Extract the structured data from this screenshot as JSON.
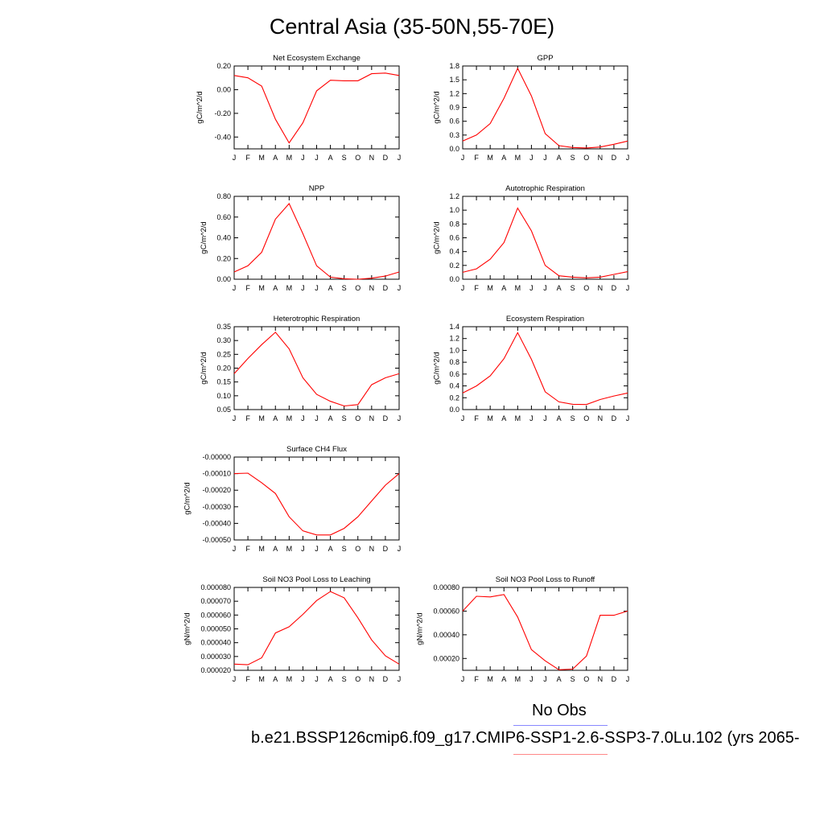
{
  "page": {
    "title": "Central Asia (35-50N,55-70E)",
    "legend_obs_label": "No Obs",
    "legend_case_label": "b.e21.BSSP126cmip6.f09_g17.CMIP6-SSP1-2.6-SSP3-7.0Lu.102 (yrs 2065-",
    "colors": {
      "series": "#ff0000",
      "obs_line": "#8888ff",
      "case_line": "#ff8888"
    }
  },
  "chart_data": [
    {
      "type": "line",
      "title": "Net Ecosystem Exchange",
      "ylabel": "gC/m^2/d",
      "x": [
        "J",
        "F",
        "M",
        "A",
        "M",
        "J",
        "J",
        "A",
        "S",
        "O",
        "N",
        "D",
        "J"
      ],
      "ylim": [
        -0.5,
        0.2
      ],
      "yticks": [
        -0.4,
        -0.2,
        0.0,
        0.2
      ],
      "yticklabels": [
        "-0.40",
        "-0.20",
        "0.00",
        "0.20"
      ],
      "series": [
        {
          "values": [
            0.12,
            0.1,
            0.03,
            -0.25,
            -0.45,
            -0.28,
            -0.01,
            0.08,
            0.075,
            0.075,
            0.135,
            0.14,
            0.12
          ]
        }
      ]
    },
    {
      "type": "line",
      "title": "GPP",
      "ylabel": "gC/m^2/d",
      "x": [
        "J",
        "F",
        "M",
        "A",
        "M",
        "J",
        "J",
        "A",
        "S",
        "O",
        "N",
        "D",
        "J"
      ],
      "ylim": [
        0.0,
        1.8
      ],
      "yticks": [
        0.0,
        0.3,
        0.6,
        0.9,
        1.2,
        1.5,
        1.8
      ],
      "yticklabels": [
        "0.0",
        "0.3",
        "0.6",
        "0.9",
        "1.2",
        "1.5",
        "1.8"
      ],
      "series": [
        {
          "values": [
            0.17,
            0.3,
            0.55,
            1.1,
            1.75,
            1.15,
            0.33,
            0.07,
            0.03,
            0.02,
            0.04,
            0.1,
            0.17
          ]
        }
      ]
    },
    {
      "type": "line",
      "title": "NPP",
      "ylabel": "gC/m^2/d",
      "x": [
        "J",
        "F",
        "M",
        "A",
        "M",
        "J",
        "J",
        "A",
        "S",
        "O",
        "N",
        "D",
        "J"
      ],
      "ylim": [
        0.0,
        0.8
      ],
      "yticks": [
        0.0,
        0.2,
        0.4,
        0.6,
        0.8
      ],
      "yticklabels": [
        "0.00",
        "0.20",
        "0.40",
        "0.60",
        "0.80"
      ],
      "series": [
        {
          "values": [
            0.07,
            0.13,
            0.26,
            0.58,
            0.73,
            0.44,
            0.13,
            0.02,
            0.005,
            0.0,
            0.01,
            0.03,
            0.07
          ]
        }
      ]
    },
    {
      "type": "line",
      "title": "Autotrophic Respiration",
      "ylabel": "gC/m^2/d",
      "x": [
        "J",
        "F",
        "M",
        "A",
        "M",
        "J",
        "J",
        "A",
        "S",
        "O",
        "N",
        "D",
        "J"
      ],
      "ylim": [
        0.0,
        1.2
      ],
      "yticks": [
        0.0,
        0.2,
        0.4,
        0.6,
        0.8,
        1.0,
        1.2
      ],
      "yticklabels": [
        "0.0",
        "0.2",
        "0.4",
        "0.6",
        "0.8",
        "1.0",
        "1.2"
      ],
      "series": [
        {
          "values": [
            0.1,
            0.15,
            0.29,
            0.53,
            1.03,
            0.7,
            0.2,
            0.05,
            0.03,
            0.02,
            0.03,
            0.07,
            0.11
          ]
        }
      ]
    },
    {
      "type": "line",
      "title": "Heterotrophic Respiration",
      "ylabel": "gC/m^2/d",
      "x": [
        "J",
        "F",
        "M",
        "A",
        "M",
        "J",
        "J",
        "A",
        "S",
        "O",
        "N",
        "D",
        "J"
      ],
      "ylim": [
        0.05,
        0.35
      ],
      "yticks": [
        0.05,
        0.1,
        0.15,
        0.2,
        0.25,
        0.3,
        0.35
      ],
      "yticklabels": [
        "0.05",
        "0.10",
        "0.15",
        "0.20",
        "0.25",
        "0.30",
        "0.35"
      ],
      "series": [
        {
          "values": [
            0.18,
            0.235,
            0.285,
            0.33,
            0.27,
            0.165,
            0.105,
            0.08,
            0.063,
            0.068,
            0.14,
            0.165,
            0.18
          ]
        }
      ]
    },
    {
      "type": "line",
      "title": "Ecosystem Respiration",
      "ylabel": "gC/m^2/d",
      "x": [
        "J",
        "F",
        "M",
        "A",
        "M",
        "J",
        "J",
        "A",
        "S",
        "O",
        "N",
        "D",
        "J"
      ],
      "ylim": [
        0.0,
        1.4
      ],
      "yticks": [
        0.0,
        0.2,
        0.4,
        0.6,
        0.8,
        1.0,
        1.2,
        1.4
      ],
      "yticklabels": [
        "0.0",
        "0.2",
        "0.4",
        "0.6",
        "0.8",
        "1.0",
        "1.2",
        "1.4"
      ],
      "series": [
        {
          "values": [
            0.28,
            0.4,
            0.57,
            0.86,
            1.3,
            0.85,
            0.3,
            0.13,
            0.09,
            0.085,
            0.17,
            0.23,
            0.28
          ]
        }
      ]
    },
    {
      "type": "line",
      "title": "Surface CH4 Flux",
      "ylabel": "gC/m^2/d",
      "x": [
        "J",
        "F",
        "M",
        "A",
        "M",
        "J",
        "J",
        "A",
        "S",
        "O",
        "N",
        "D",
        "J"
      ],
      "ylim": [
        -0.0005,
        0.0
      ],
      "yticks": [
        -0.0005,
        -0.0004,
        -0.0003,
        -0.0002,
        -0.0001,
        0.0
      ],
      "yticklabels": [
        "-0.00050",
        "-0.00040",
        "-0.00030",
        "-0.00020",
        "-0.00010",
        "-0.00000"
      ],
      "series": [
        {
          "values": [
            -0.0001,
            -9.7e-05,
            -0.000155,
            -0.00022,
            -0.00036,
            -0.000445,
            -0.00047,
            -0.00047,
            -0.00043,
            -0.00036,
            -0.000265,
            -0.00017,
            -0.0001
          ]
        }
      ]
    },
    {
      "type": "line",
      "title": "Soil NO3 Pool Loss to Leaching",
      "ylabel": "gN/m^2/d",
      "x": [
        "J",
        "F",
        "M",
        "A",
        "M",
        "J",
        "J",
        "A",
        "S",
        "O",
        "N",
        "D",
        "J"
      ],
      "ylim": [
        2e-05,
        8e-05
      ],
      "yticks": [
        2e-05,
        3e-05,
        4e-05,
        5e-05,
        6e-05,
        7e-05,
        8e-05
      ],
      "yticklabels": [
        "0.000020",
        "0.000030",
        "0.000040",
        "0.000050",
        "0.000060",
        "0.000070",
        "0.000080"
      ],
      "series": [
        {
          "values": [
            2.45e-05,
            2.4e-05,
            2.9e-05,
            4.7e-05,
            5.15e-05,
            6.05e-05,
            7.05e-05,
            7.7e-05,
            7.25e-05,
            5.8e-05,
            4.2e-05,
            3.05e-05,
            2.45e-05
          ]
        }
      ]
    },
    {
      "type": "line",
      "title": "Soil NO3 Pool Loss to Runoff",
      "ylabel": "gN/m^2/d",
      "x": [
        "J",
        "F",
        "M",
        "A",
        "M",
        "J",
        "J",
        "A",
        "S",
        "O",
        "N",
        "D",
        "J"
      ],
      "ylim": [
        0.0001,
        0.0008
      ],
      "yticks": [
        0.0002,
        0.0004,
        0.0006,
        0.0008
      ],
      "yticklabels": [
        "0.00020",
        "0.00040",
        "0.00060",
        "0.00080"
      ],
      "series": [
        {
          "values": [
            0.0006,
            0.000725,
            0.00072,
            0.00074,
            0.00055,
            0.000275,
            0.00018,
            0.000105,
            0.00011,
            0.00022,
            0.000565,
            0.000565,
            0.0006
          ]
        }
      ]
    }
  ]
}
